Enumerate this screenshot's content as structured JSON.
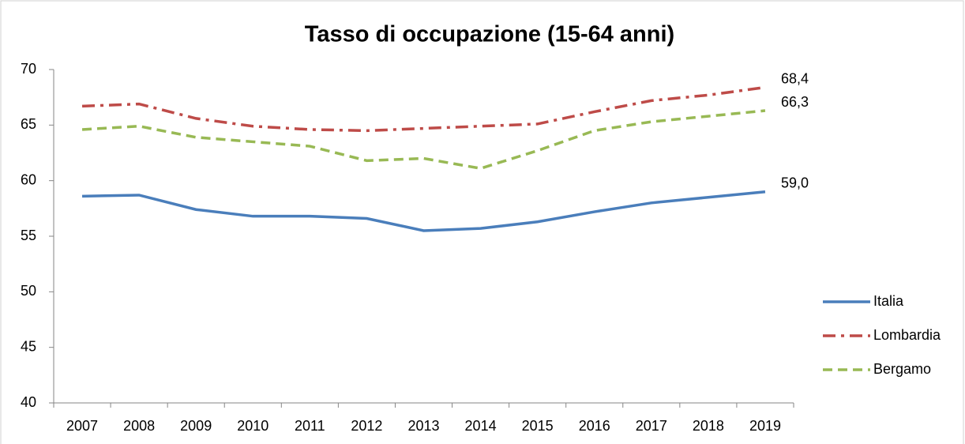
{
  "chart_data": {
    "type": "line",
    "title": "Tasso di occupazione (15-64 anni)",
    "categories": [
      "2007",
      "2008",
      "2009",
      "2010",
      "2011",
      "2012",
      "2013",
      "2014",
      "2015",
      "2016",
      "2017",
      "2018",
      "2019"
    ],
    "series": [
      {
        "name": "Italia",
        "color": "#4a7ebb",
        "dash": "solid",
        "values": [
          58.6,
          58.7,
          57.4,
          56.8,
          56.8,
          56.6,
          55.5,
          55.7,
          56.3,
          57.2,
          58.0,
          58.5,
          59.0
        ],
        "value_labels": [
          null,
          null,
          null,
          null,
          null,
          null,
          null,
          null,
          null,
          null,
          null,
          null,
          "59,0"
        ]
      },
      {
        "name": "Lombardia",
        "color": "#be4b48",
        "dash": "dashdot",
        "values": [
          66.7,
          66.9,
          65.6,
          64.9,
          64.6,
          64.5,
          64.7,
          64.9,
          65.1,
          66.2,
          67.2,
          67.7,
          68.4
        ],
        "value_labels": [
          null,
          null,
          null,
          null,
          null,
          null,
          null,
          null,
          null,
          null,
          null,
          null,
          "68,4"
        ]
      },
      {
        "name": "Bergamo",
        "color": "#98b954",
        "dash": "dashed",
        "values": [
          64.6,
          64.9,
          63.9,
          63.5,
          63.1,
          61.8,
          62.0,
          61.1,
          62.7,
          64.5,
          65.3,
          65.8,
          66.3
        ],
        "value_labels": [
          null,
          null,
          null,
          null,
          null,
          null,
          null,
          null,
          null,
          null,
          null,
          null,
          "66,3"
        ]
      }
    ],
    "ylim": [
      40,
      70
    ],
    "yticks": [
      40,
      45,
      50,
      55,
      60,
      65,
      70
    ],
    "grid": false,
    "legend": "right"
  }
}
